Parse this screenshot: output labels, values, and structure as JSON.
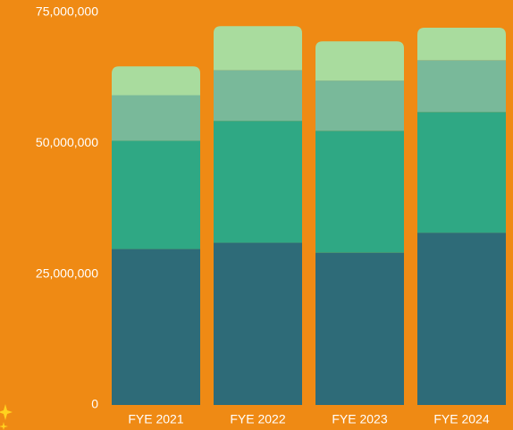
{
  "chart_data": {
    "type": "stacked_bar",
    "categories": [
      "FYE 2021",
      "FYE 2022",
      "FYE 2023",
      "FYE 2024"
    ],
    "series": [
      {
        "color": "#2e6b78",
        "values": [
          29800000,
          31000000,
          29100000,
          32900000
        ]
      },
      {
        "color": "#2fa884",
        "values": [
          20700000,
          23300000,
          23300000,
          23100000
        ]
      },
      {
        "color": "#79b99a",
        "values": [
          8700000,
          9700000,
          9600000,
          9900000
        ]
      },
      {
        "color": "#a9dc9e",
        "values": [
          5500000,
          8400000,
          7500000,
          6200000
        ]
      }
    ],
    "ylim": [
      0,
      75000000
    ],
    "yticks": [
      0,
      {
        "value": 25000000,
        "label": "25,000,000"
      },
      {
        "value": 50000000,
        "label": "50,000,000"
      },
      {
        "value": 75000000,
        "label": "75,000,000"
      }
    ],
    "grid": false
  }
}
